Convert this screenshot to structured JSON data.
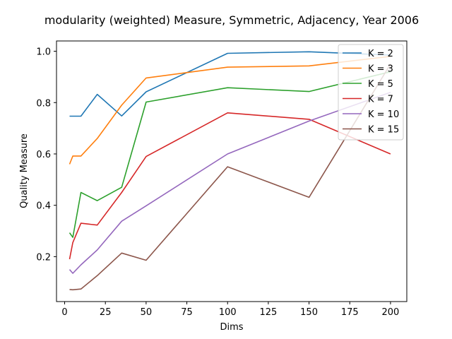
{
  "chart_data": {
    "type": "line",
    "title": "modularity (weighted) Measure, Symmetric, Adjacency, Year 2006",
    "xlabel": "Dims",
    "ylabel": "Quality Measure",
    "xlim": [
      -5,
      210
    ],
    "ylim": [
      0.025,
      1.04
    ],
    "xticks": [
      0,
      25,
      50,
      75,
      100,
      125,
      150,
      175,
      200
    ],
    "yticks": [
      0.2,
      0.4,
      0.6,
      0.8,
      1.0
    ],
    "xtick_labels": [
      "0",
      "25",
      "50",
      "75",
      "100",
      "125",
      "150",
      "175",
      "200"
    ],
    "ytick_labels": [
      "0.2",
      "0.4",
      "0.6",
      "0.8",
      "1.0"
    ],
    "grid": false,
    "legend_position": "top-right",
    "x": [
      3,
      5,
      10,
      20,
      35,
      50,
      100,
      150,
      200
    ],
    "series": [
      {
        "name": "K = 2",
        "color": "#1f77b4",
        "values": [
          0.747,
          0.747,
          0.747,
          0.832,
          0.748,
          0.842,
          0.992,
          0.998,
          0.985
        ]
      },
      {
        "name": "K = 3",
        "color": "#ff7f0e",
        "values": [
          0.56,
          0.592,
          0.592,
          0.66,
          0.79,
          0.896,
          0.938,
          0.943,
          0.98
        ]
      },
      {
        "name": "K = 5",
        "color": "#2ca02c",
        "values": [
          0.293,
          0.275,
          0.45,
          0.418,
          0.47,
          0.802,
          0.858,
          0.843,
          0.92
        ]
      },
      {
        "name": "K = 7",
        "color": "#d62728",
        "values": [
          0.19,
          0.255,
          0.33,
          0.323,
          0.45,
          0.59,
          0.76,
          0.735,
          0.6
        ]
      },
      {
        "name": "K = 10",
        "color": "#9467bd",
        "values": [
          0.15,
          0.135,
          0.168,
          0.226,
          0.338,
          0.398,
          0.6,
          0.728,
          0.84
        ]
      },
      {
        "name": "K = 15",
        "color": "#8c564b",
        "values": [
          0.072,
          0.071,
          0.074,
          0.126,
          0.214,
          0.186,
          0.55,
          0.431,
          0.95
        ]
      }
    ]
  }
}
